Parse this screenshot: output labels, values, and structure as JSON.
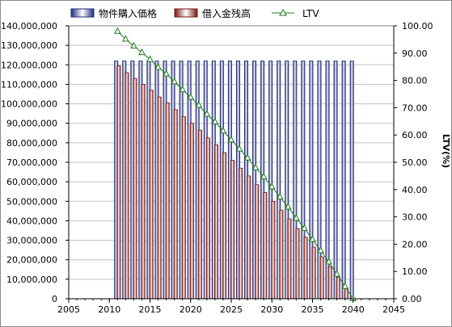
{
  "chart_data": {
    "type": "bar",
    "legend": {
      "placement": "top",
      "items": [
        "物件購入価格",
        "借入金残高",
        "LTV"
      ]
    },
    "x_axis": {
      "range": [
        2005,
        2045
      ],
      "ticks": [
        "2005",
        "2010",
        "2015",
        "2020",
        "2025",
        "2030",
        "2035",
        "2040",
        "2045"
      ]
    },
    "y_axis_left": {
      "range": [
        0,
        140000000
      ],
      "ticks": [
        "0",
        "10,000,000",
        "20,000,000",
        "30,000,000",
        "40,000,000",
        "50,000,000",
        "60,000,000",
        "70,000,000",
        "80,000,000",
        "90,000,000",
        "100,000,000",
        "110,000,000",
        "120,000,000",
        "130,000,000",
        "140,000,000"
      ]
    },
    "y_axis_right": {
      "label": "LTV(%)",
      "range": [
        0,
        100
      ],
      "ticks": [
        "0.00",
        "10.00",
        "20.00",
        "30.00",
        "40.00",
        "50.00",
        "60.00",
        "70.00",
        "80.00",
        "90.00",
        "100.00"
      ]
    },
    "grid": "horizontal",
    "x": [
      2011,
      2012,
      2013,
      2014,
      2015,
      2016,
      2017,
      2018,
      2019,
      2020,
      2021,
      2022,
      2023,
      2024,
      2025,
      2026,
      2027,
      2028,
      2029,
      2030,
      2031,
      2032,
      2033,
      2034,
      2035,
      2036,
      2037,
      2038,
      2039,
      2040
    ],
    "series": [
      {
        "name": "物件購入価格",
        "kind": "bar",
        "axis": "left",
        "color": "#2b3990",
        "values": [
          122000000,
          122000000,
          122000000,
          122000000,
          122000000,
          122000000,
          122000000,
          122000000,
          122000000,
          122000000,
          122000000,
          122000000,
          122000000,
          122000000,
          122000000,
          122000000,
          122000000,
          122000000,
          122000000,
          122000000,
          122000000,
          122000000,
          122000000,
          122000000,
          122000000,
          122000000,
          122000000,
          122000000,
          122000000,
          122000000
        ]
      },
      {
        "name": "借入金残高",
        "kind": "bar",
        "axis": "left",
        "color": "#8b1a1a",
        "values": [
          119500000,
          116000000,
          113000000,
          110000000,
          107000000,
          103500000,
          100500000,
          97000000,
          93500000,
          90000000,
          86500000,
          82500000,
          79000000,
          75000000,
          71000000,
          67000000,
          63000000,
          58500000,
          54500000,
          50000000,
          45500000,
          41000000,
          36000000,
          31500000,
          26500000,
          21500000,
          16500000,
          11000000,
          5500000,
          0
        ]
      },
      {
        "name": "LTV",
        "kind": "line",
        "axis": "right",
        "color": "#1a7a1a",
        "values": [
          98.0,
          95.1,
          92.6,
          90.2,
          87.7,
          84.8,
          82.4,
          79.5,
          76.6,
          73.8,
          70.9,
          67.6,
          64.8,
          61.5,
          58.2,
          54.9,
          51.6,
          48.0,
          44.7,
          41.0,
          37.3,
          33.6,
          29.5,
          25.8,
          21.7,
          17.6,
          13.5,
          9.0,
          4.5,
          0.0
        ]
      }
    ]
  }
}
